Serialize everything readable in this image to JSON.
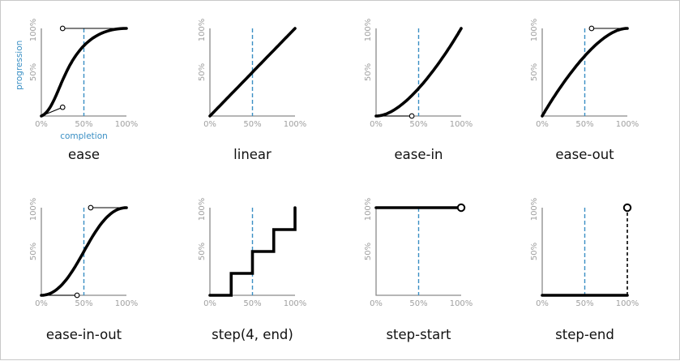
{
  "x_axis_label": "completion",
  "y_axis_label": "progression",
  "tick_labels": {
    "zero": "0%",
    "half": "50%",
    "full": "100%"
  },
  "panels": [
    {
      "title": "ease",
      "type": "bezier",
      "p1": [
        0.25,
        0.1
      ],
      "p2": [
        0.25,
        1.0
      ],
      "handles": true
    },
    {
      "title": "linear",
      "type": "bezier",
      "p1": [
        0.0,
        0.0
      ],
      "p2": [
        1.0,
        1.0
      ],
      "handles": false
    },
    {
      "title": "ease-in",
      "type": "bezier",
      "p1": [
        0.42,
        0.0
      ],
      "p2": [
        1.0,
        1.0
      ],
      "handles": true
    },
    {
      "title": "ease-out",
      "type": "bezier",
      "p1": [
        0.0,
        0.0
      ],
      "p2": [
        0.58,
        1.0
      ],
      "handles": true
    },
    {
      "title": "ease-in-out",
      "type": "bezier",
      "p1": [
        0.42,
        0.0
      ],
      "p2": [
        0.58,
        1.0
      ],
      "handles": true
    },
    {
      "title": "step(4,  end)",
      "type": "steps",
      "steps": 4,
      "position": "end"
    },
    {
      "title": "step-start",
      "type": "steps",
      "steps": 1,
      "position": "start"
    },
    {
      "title": "step-end",
      "type": "steps",
      "steps": 1,
      "position": "end"
    }
  ]
}
